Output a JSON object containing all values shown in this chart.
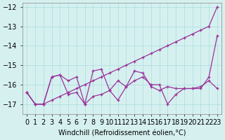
{
  "xlabel": "Windchill (Refroidissement éolien,°C)",
  "ylabel": "",
  "x": [
    0,
    1,
    2,
    3,
    4,
    5,
    6,
    7,
    8,
    9,
    10,
    11,
    12,
    13,
    14,
    15,
    16,
    17,
    18,
    19,
    20,
    21,
    22,
    23
  ],
  "series1": [
    -16.4,
    -17.0,
    -17.0,
    -16.8,
    -16.6,
    -16.4,
    -16.2,
    -16.0,
    -15.8,
    -15.6,
    -15.4,
    -15.2,
    -15.0,
    -14.8,
    -14.6,
    -14.4,
    -14.2,
    -14.0,
    -13.8,
    -13.6,
    -13.4,
    -13.2,
    -13.0,
    -12.0
  ],
  "series2": [
    -16.4,
    -17.0,
    -17.0,
    -15.6,
    -15.5,
    -15.8,
    -15.6,
    -17.0,
    -15.3,
    -15.2,
    -16.3,
    -15.8,
    -16.1,
    -15.3,
    -15.4,
    -16.1,
    -16.3,
    -16.1,
    -16.2,
    -16.2,
    -16.2,
    -16.2,
    -15.6,
    -13.5
  ],
  "series3": [
    -16.4,
    -17.0,
    -17.0,
    -15.6,
    -15.5,
    -16.5,
    -16.4,
    -17.0,
    -16.6,
    -16.5,
    -16.3,
    -16.8,
    -16.1,
    -15.8,
    -15.6,
    -16.0,
    -16.0,
    -17.0,
    -16.5,
    -16.2,
    -16.2,
    -16.1,
    -15.8,
    -16.2
  ],
  "line_color": "#993399",
  "marker": "+",
  "bg_color": "#d6f0f0",
  "grid_color": "#aadddd",
  "ylim": [
    -17.5,
    -11.8
  ],
  "yticks": [
    -17,
    -16,
    -15,
    -14,
    -13,
    -12
  ],
  "xlim": [
    -0.5,
    23.5
  ],
  "tick_fontsize": 7,
  "xlabel_fontsize": 7
}
